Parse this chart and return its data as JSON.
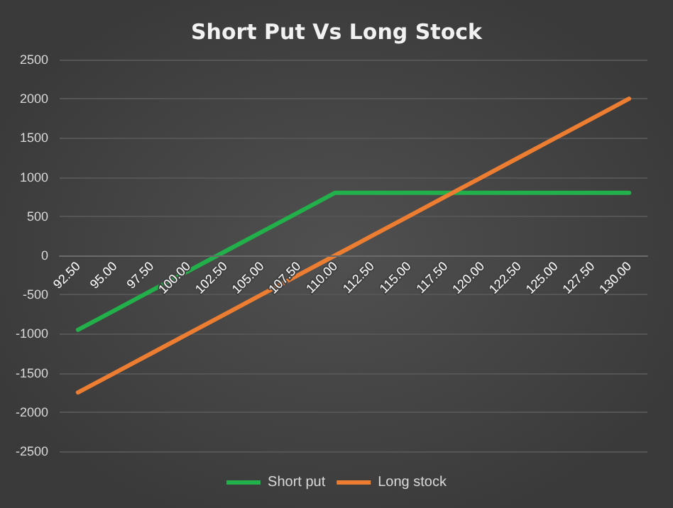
{
  "chart_data": {
    "type": "line",
    "title": "Short Put Vs Long Stock",
    "categories": [
      "92.50",
      "95.00",
      "97.50",
      "100.00",
      "102.50",
      "105.00",
      "107.50",
      "110.00",
      "112.50",
      "115.00",
      "117.50",
      "120.00",
      "122.50",
      "125.00",
      "127.50",
      "130.00"
    ],
    "series": [
      {
        "name": "Short put",
        "color": "#22b04b",
        "values": [
          -950,
          -700,
          -450,
          -200,
          50,
          300,
          550,
          800,
          800,
          800,
          800,
          800,
          800,
          800,
          800,
          800
        ]
      },
      {
        "name": "Long stock",
        "color": "#ed7d31",
        "values": [
          -1750,
          -1500,
          -1250,
          -1000,
          -750,
          -500,
          -250,
          0,
          250,
          500,
          750,
          1000,
          1250,
          1500,
          1750,
          2000
        ]
      }
    ],
    "ylim": [
      -2500,
      2500
    ],
    "yticks": [
      -2500,
      -2000,
      -1500,
      -1000,
      -500,
      0,
      500,
      1000,
      1500,
      2000,
      2500
    ],
    "grid": "y",
    "legend": "bottom",
    "marker": "none",
    "line_style": "solid"
  }
}
